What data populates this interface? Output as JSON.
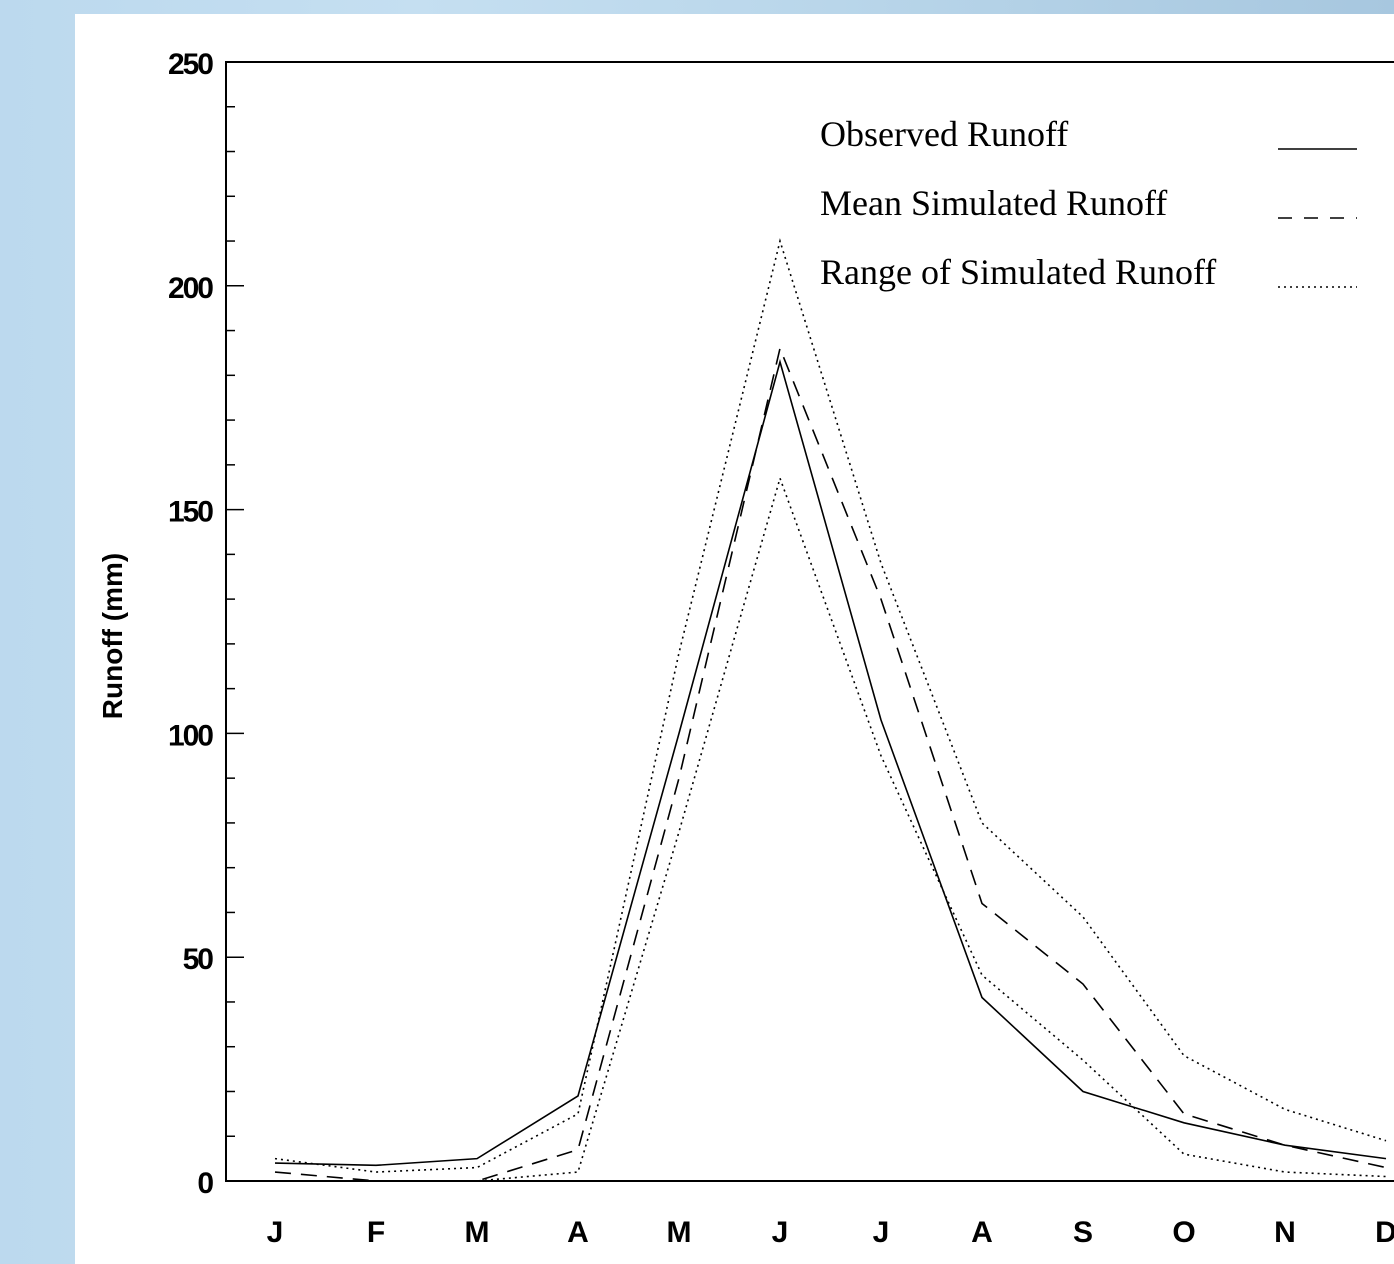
{
  "chart_data": {
    "type": "line",
    "title": "",
    "xlabel": "",
    "ylabel": "Runoff (mm)",
    "categories": [
      "J",
      "F",
      "M",
      "A",
      "M",
      "J",
      "J",
      "A",
      "S",
      "O",
      "N",
      "D"
    ],
    "ylim": [
      0,
      250
    ],
    "yticks": [
      0,
      50,
      100,
      150,
      200,
      250
    ],
    "grid": false,
    "legend_position": "top-right",
    "series": [
      {
        "name": "Observed Runoff",
        "style": "solid",
        "values": [
          4,
          3.5,
          5,
          19,
          100,
          183,
          103,
          41,
          20,
          13,
          8,
          5
        ]
      },
      {
        "name": "Mean Simulated Runoff",
        "style": "dashed",
        "values": [
          2,
          0,
          0,
          7,
          90,
          186,
          130,
          62,
          44,
          15,
          8,
          3
        ]
      },
      {
        "name": "Range of Simulated Runoff",
        "style": "dotted",
        "values": [
          5,
          2,
          3,
          15,
          118,
          210,
          138,
          80,
          59,
          28,
          16,
          9
        ]
      },
      {
        "name": "",
        "style": "dotted",
        "legend": false,
        "values": [
          0,
          0,
          0,
          2,
          78,
          157,
          95,
          46,
          27,
          6,
          2,
          1
        ]
      }
    ]
  }
}
